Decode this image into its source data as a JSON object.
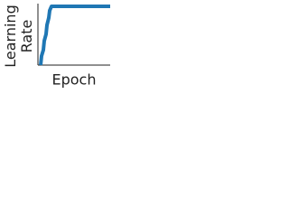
{
  "chart_data": {
    "type": "line",
    "x_label": "Epoch",
    "y_label": "Learning Rate",
    "x": [
      3,
      4,
      6,
      7,
      9,
      10,
      12,
      13,
      15,
      80
    ],
    "series": [
      {
        "color": "#1f77b4",
        "values": [
          0,
          0.15,
          0.25,
          0.4,
          0.51,
          0.66,
          0.78,
          0.9,
          0.97,
          0.97
        ]
      }
    ],
    "xlim": [
      0,
      80
    ],
    "ylim": [
      0,
      1
    ]
  }
}
